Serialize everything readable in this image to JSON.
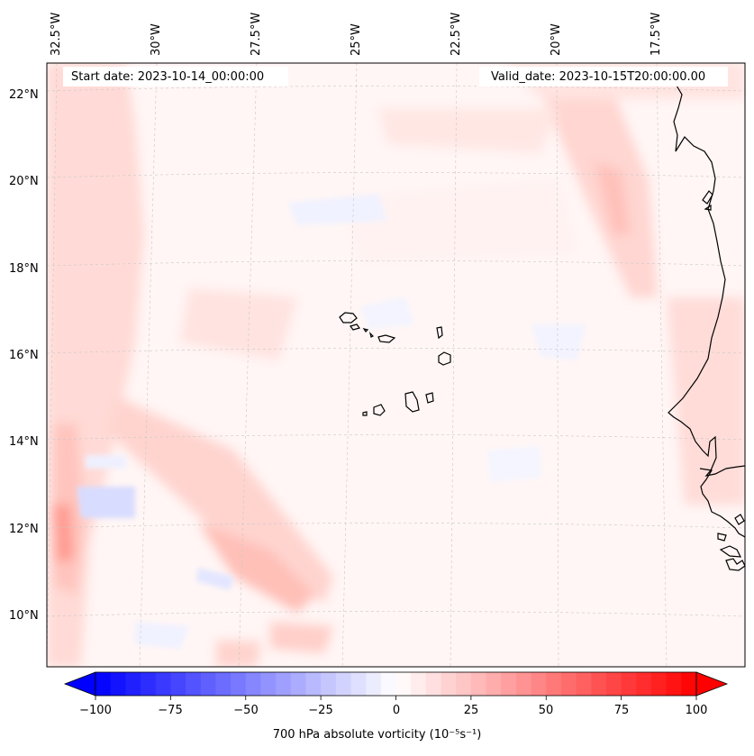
{
  "map": {
    "start_date": "Start date: 2023-10-14_00:00:00",
    "valid_date": "Valid_date: 2023-10-15T20:00:00.00",
    "lon_labels": [
      "32.5°W",
      "30°W",
      "27.5°W",
      "25°W",
      "22.5°W",
      "20°W",
      "17.5°W"
    ],
    "lat_labels": [
      "22°N",
      "20°N",
      "18°N",
      "16°N",
      "14°N",
      "12°N",
      "10°N"
    ],
    "extent": {
      "lon_min": -33.0,
      "lon_max": -15.8,
      "lat_min": 8.9,
      "lat_max": 22.8
    },
    "variable": "700 hPa absolute vorticity",
    "colormap": "bwr"
  },
  "colorbar": {
    "label": "700 hPa absolute vorticity (10⁻⁵s⁻¹)",
    "ticks": [
      "−100",
      "−75",
      "−50",
      "−25",
      "0",
      "25",
      "50",
      "75",
      "100"
    ],
    "range": [
      -100,
      100
    ],
    "levels": 41,
    "colors": {
      "min": "#0000ff",
      "mid": "#ffffff",
      "max": "#ff0000"
    }
  }
}
